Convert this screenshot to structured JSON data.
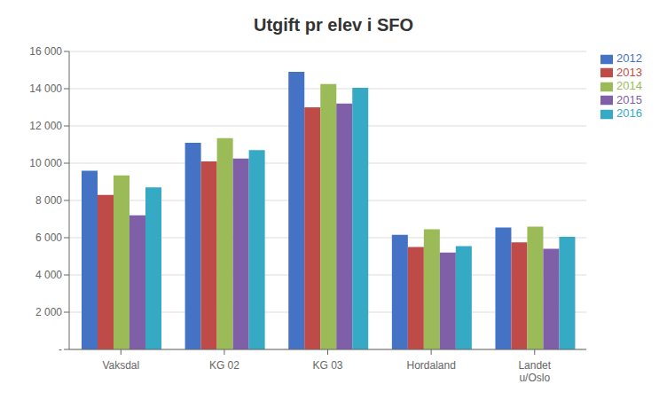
{
  "chart_data": {
    "type": "bar",
    "title": "Utgift pr elev i SFO",
    "categories": [
      "Vaksdal",
      "KG 02",
      "KG 03",
      "Hordaland",
      "Landet\nu/Oslo"
    ],
    "series": [
      {
        "name": "2012",
        "color": "#4472C4",
        "values": [
          9600,
          11100,
          14900,
          6150,
          6550
        ]
      },
      {
        "name": "2013",
        "color": "#BE4B48",
        "values": [
          8300,
          10100,
          13000,
          5500,
          5750
        ]
      },
      {
        "name": "2014",
        "color": "#9BBB59",
        "values": [
          9350,
          11350,
          14250,
          6450,
          6600
        ]
      },
      {
        "name": "2015",
        "color": "#7F5FA7",
        "values": [
          7200,
          10250,
          13200,
          5200,
          5400
        ]
      },
      {
        "name": "2016",
        "color": "#36A9C5",
        "values": [
          8700,
          10700,
          14050,
          5550,
          6050
        ]
      }
    ],
    "ylim": [
      0,
      16000
    ],
    "yticks": [
      {
        "value": 0,
        "label": "-"
      },
      {
        "value": 2000,
        "label": "2 000"
      },
      {
        "value": 4000,
        "label": "4 000"
      },
      {
        "value": 6000,
        "label": "6 000"
      },
      {
        "value": 8000,
        "label": "8 000"
      },
      {
        "value": 10000,
        "label": "10 000"
      },
      {
        "value": 12000,
        "label": "12 000"
      },
      {
        "value": 14000,
        "label": "14 000"
      },
      {
        "value": 16000,
        "label": "16 000"
      }
    ],
    "grid": true,
    "legend": "upper right"
  }
}
